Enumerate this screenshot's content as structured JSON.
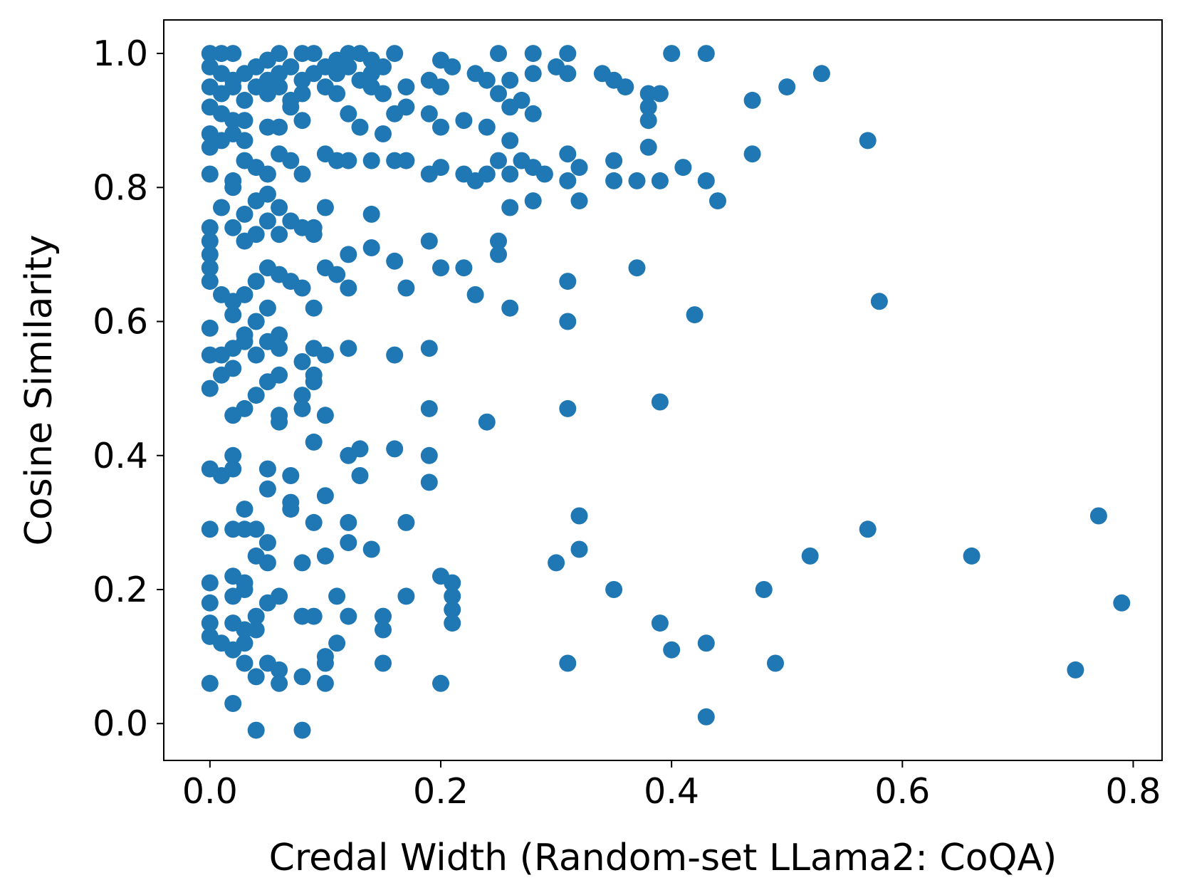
{
  "chart_data": {
    "type": "scatter",
    "title": "",
    "xlabel": "Credal Width (Random-set LLama2: CoQA)",
    "ylabel": "Cosine Similarity",
    "xlim": [
      -0.04,
      0.825
    ],
    "ylim": [
      -0.055,
      1.05
    ],
    "xticks": [
      "0.0",
      "0.2",
      "0.4",
      "0.6",
      "0.8"
    ],
    "yticks": [
      "0.0",
      "0.2",
      "0.4",
      "0.6",
      "0.8",
      "1.0"
    ],
    "grid": false,
    "legend": "none",
    "marker_color": "#1f77b4",
    "series": [
      {
        "points": [
          [
            0.0,
            1.0
          ],
          [
            0.01,
            1.0
          ],
          [
            0.02,
            1.0
          ],
          [
            0.05,
            0.99
          ],
          [
            0.06,
            1.0
          ],
          [
            0.08,
            1.0
          ],
          [
            0.09,
            1.0
          ],
          [
            0.11,
            0.99
          ],
          [
            0.12,
            1.0
          ],
          [
            0.13,
            1.0
          ],
          [
            0.14,
            0.99
          ],
          [
            0.16,
            1.0
          ],
          [
            0.25,
            1.0
          ],
          [
            0.28,
            1.0
          ],
          [
            0.31,
            1.0
          ],
          [
            0.4,
            1.0
          ],
          [
            0.43,
            1.0
          ],
          [
            0.0,
            0.98
          ],
          [
            0.01,
            0.97
          ],
          [
            0.02,
            0.96
          ],
          [
            0.03,
            0.97
          ],
          [
            0.04,
            0.98
          ],
          [
            0.05,
            0.96
          ],
          [
            0.06,
            0.97
          ],
          [
            0.07,
            0.98
          ],
          [
            0.08,
            0.96
          ],
          [
            0.09,
            0.97
          ],
          [
            0.1,
            0.98
          ],
          [
            0.11,
            0.97
          ],
          [
            0.12,
            0.98
          ],
          [
            0.13,
            0.96
          ],
          [
            0.14,
            0.97
          ],
          [
            0.15,
            0.98
          ],
          [
            0.2,
            0.99
          ],
          [
            0.21,
            0.98
          ],
          [
            0.23,
            0.97
          ],
          [
            0.24,
            0.96
          ],
          [
            0.26,
            0.96
          ],
          [
            0.28,
            0.97
          ],
          [
            0.3,
            0.98
          ],
          [
            0.31,
            0.97
          ],
          [
            0.34,
            0.97
          ],
          [
            0.35,
            0.96
          ],
          [
            0.53,
            0.97
          ],
          [
            0.0,
            0.95
          ],
          [
            0.01,
            0.94
          ],
          [
            0.02,
            0.95
          ],
          [
            0.03,
            0.93
          ],
          [
            0.04,
            0.95
          ],
          [
            0.05,
            0.94
          ],
          [
            0.06,
            0.95
          ],
          [
            0.07,
            0.93
          ],
          [
            0.08,
            0.94
          ],
          [
            0.1,
            0.95
          ],
          [
            0.11,
            0.94
          ],
          [
            0.14,
            0.95
          ],
          [
            0.15,
            0.94
          ],
          [
            0.17,
            0.95
          ],
          [
            0.19,
            0.96
          ],
          [
            0.2,
            0.95
          ],
          [
            0.25,
            0.94
          ],
          [
            0.27,
            0.93
          ],
          [
            0.36,
            0.95
          ],
          [
            0.38,
            0.94
          ],
          [
            0.39,
            0.94
          ],
          [
            0.5,
            0.95
          ],
          [
            0.0,
            0.92
          ],
          [
            0.01,
            0.91
          ],
          [
            0.02,
            0.9
          ],
          [
            0.03,
            0.9
          ],
          [
            0.05,
            0.89
          ],
          [
            0.06,
            0.89
          ],
          [
            0.07,
            0.92
          ],
          [
            0.08,
            0.9
          ],
          [
            0.12,
            0.91
          ],
          [
            0.13,
            0.89
          ],
          [
            0.15,
            0.88
          ],
          [
            0.16,
            0.91
          ],
          [
            0.17,
            0.92
          ],
          [
            0.19,
            0.91
          ],
          [
            0.2,
            0.89
          ],
          [
            0.22,
            0.9
          ],
          [
            0.24,
            0.89
          ],
          [
            0.26,
            0.92
          ],
          [
            0.28,
            0.91
          ],
          [
            0.38,
            0.92
          ],
          [
            0.38,
            0.9
          ],
          [
            0.47,
            0.93
          ],
          [
            0.0,
            0.88
          ],
          [
            0.01,
            0.87
          ],
          [
            0.02,
            0.88
          ],
          [
            0.03,
            0.87
          ],
          [
            0.0,
            0.86
          ],
          [
            0.26,
            0.87
          ],
          [
            0.38,
            0.86
          ],
          [
            0.57,
            0.87
          ],
          [
            0.0,
            0.82
          ],
          [
            0.02,
            0.81
          ],
          [
            0.03,
            0.84
          ],
          [
            0.04,
            0.83
          ],
          [
            0.05,
            0.82
          ],
          [
            0.06,
            0.85
          ],
          [
            0.07,
            0.84
          ],
          [
            0.08,
            0.82
          ],
          [
            0.1,
            0.85
          ],
          [
            0.11,
            0.84
          ],
          [
            0.12,
            0.84
          ],
          [
            0.14,
            0.84
          ],
          [
            0.16,
            0.84
          ],
          [
            0.17,
            0.84
          ],
          [
            0.19,
            0.82
          ],
          [
            0.2,
            0.83
          ],
          [
            0.22,
            0.82
          ],
          [
            0.23,
            0.81
          ],
          [
            0.24,
            0.82
          ],
          [
            0.25,
            0.84
          ],
          [
            0.26,
            0.82
          ],
          [
            0.27,
            0.84
          ],
          [
            0.28,
            0.83
          ],
          [
            0.29,
            0.82
          ],
          [
            0.31,
            0.81
          ],
          [
            0.31,
            0.85
          ],
          [
            0.32,
            0.83
          ],
          [
            0.35,
            0.84
          ],
          [
            0.35,
            0.81
          ],
          [
            0.37,
            0.81
          ],
          [
            0.39,
            0.81
          ],
          [
            0.41,
            0.83
          ],
          [
            0.43,
            0.81
          ],
          [
            0.47,
            0.85
          ],
          [
            0.01,
            0.77
          ],
          [
            0.02,
            0.8
          ],
          [
            0.03,
            0.76
          ],
          [
            0.04,
            0.78
          ],
          [
            0.05,
            0.79
          ],
          [
            0.06,
            0.77
          ],
          [
            0.07,
            0.75
          ],
          [
            0.09,
            0.74
          ],
          [
            0.1,
            0.77
          ],
          [
            0.14,
            0.76
          ],
          [
            0.26,
            0.77
          ],
          [
            0.28,
            0.78
          ],
          [
            0.32,
            0.78
          ],
          [
            0.44,
            0.78
          ],
          [
            0.0,
            0.74
          ],
          [
            0.0,
            0.72
          ],
          [
            0.0,
            0.7
          ],
          [
            0.0,
            0.68
          ],
          [
            0.02,
            0.74
          ],
          [
            0.03,
            0.72
          ],
          [
            0.04,
            0.73
          ],
          [
            0.05,
            0.75
          ],
          [
            0.06,
            0.73
          ],
          [
            0.08,
            0.74
          ],
          [
            0.09,
            0.73
          ],
          [
            0.12,
            0.7
          ],
          [
            0.14,
            0.71
          ],
          [
            0.16,
            0.69
          ],
          [
            0.19,
            0.72
          ],
          [
            0.25,
            0.72
          ],
          [
            0.25,
            0.7
          ],
          [
            0.0,
            0.66
          ],
          [
            0.01,
            0.64
          ],
          [
            0.02,
            0.63
          ],
          [
            0.03,
            0.64
          ],
          [
            0.04,
            0.66
          ],
          [
            0.05,
            0.68
          ],
          [
            0.06,
            0.67
          ],
          [
            0.07,
            0.66
          ],
          [
            0.08,
            0.65
          ],
          [
            0.09,
            0.62
          ],
          [
            0.1,
            0.68
          ],
          [
            0.11,
            0.67
          ],
          [
            0.12,
            0.65
          ],
          [
            0.17,
            0.65
          ],
          [
            0.2,
            0.68
          ],
          [
            0.22,
            0.68
          ],
          [
            0.23,
            0.64
          ],
          [
            0.26,
            0.62
          ],
          [
            0.31,
            0.66
          ],
          [
            0.37,
            0.68
          ],
          [
            0.58,
            0.63
          ],
          [
            0.0,
            0.59
          ],
          [
            0.02,
            0.61
          ],
          [
            0.03,
            0.58
          ],
          [
            0.04,
            0.6
          ],
          [
            0.05,
            0.62
          ],
          [
            0.06,
            0.58
          ],
          [
            0.0,
            0.55
          ],
          [
            0.01,
            0.55
          ],
          [
            0.02,
            0.56
          ],
          [
            0.03,
            0.57
          ],
          [
            0.04,
            0.55
          ],
          [
            0.05,
            0.57
          ],
          [
            0.06,
            0.56
          ],
          [
            0.08,
            0.54
          ],
          [
            0.09,
            0.56
          ],
          [
            0.1,
            0.55
          ],
          [
            0.12,
            0.56
          ],
          [
            0.16,
            0.55
          ],
          [
            0.19,
            0.56
          ],
          [
            0.31,
            0.6
          ],
          [
            0.42,
            0.61
          ],
          [
            0.0,
            0.5
          ],
          [
            0.01,
            0.52
          ],
          [
            0.02,
            0.53
          ],
          [
            0.04,
            0.49
          ],
          [
            0.05,
            0.51
          ],
          [
            0.06,
            0.52
          ],
          [
            0.08,
            0.49
          ],
          [
            0.09,
            0.51
          ],
          [
            0.09,
            0.52
          ],
          [
            0.02,
            0.46
          ],
          [
            0.03,
            0.47
          ],
          [
            0.06,
            0.46
          ],
          [
            0.06,
            0.45
          ],
          [
            0.08,
            0.47
          ],
          [
            0.1,
            0.46
          ],
          [
            0.19,
            0.47
          ],
          [
            0.24,
            0.45
          ],
          [
            0.31,
            0.47
          ],
          [
            0.39,
            0.48
          ],
          [
            0.0,
            0.38
          ],
          [
            0.01,
            0.37
          ],
          [
            0.02,
            0.4
          ],
          [
            0.02,
            0.38
          ],
          [
            0.05,
            0.38
          ],
          [
            0.07,
            0.37
          ],
          [
            0.09,
            0.42
          ],
          [
            0.12,
            0.4
          ],
          [
            0.13,
            0.41
          ],
          [
            0.13,
            0.37
          ],
          [
            0.16,
            0.41
          ],
          [
            0.19,
            0.36
          ],
          [
            0.19,
            0.4
          ],
          [
            0.05,
            0.35
          ],
          [
            0.07,
            0.33
          ],
          [
            0.07,
            0.32
          ],
          [
            0.1,
            0.34
          ],
          [
            0.03,
            0.32
          ],
          [
            0.0,
            0.29
          ],
          [
            0.02,
            0.29
          ],
          [
            0.03,
            0.29
          ],
          [
            0.04,
            0.29
          ],
          [
            0.05,
            0.27
          ],
          [
            0.04,
            0.25
          ],
          [
            0.05,
            0.24
          ],
          [
            0.08,
            0.24
          ],
          [
            0.09,
            0.3
          ],
          [
            0.1,
            0.25
          ],
          [
            0.12,
            0.3
          ],
          [
            0.12,
            0.27
          ],
          [
            0.14,
            0.26
          ],
          [
            0.17,
            0.3
          ],
          [
            0.3,
            0.24
          ],
          [
            0.32,
            0.26
          ],
          [
            0.32,
            0.31
          ],
          [
            0.52,
            0.25
          ],
          [
            0.57,
            0.29
          ],
          [
            0.66,
            0.25
          ],
          [
            0.77,
            0.31
          ],
          [
            0.0,
            0.21
          ],
          [
            0.02,
            0.22
          ],
          [
            0.03,
            0.21
          ],
          [
            0.03,
            0.2
          ],
          [
            0.0,
            0.18
          ],
          [
            0.02,
            0.19
          ],
          [
            0.04,
            0.16
          ],
          [
            0.05,
            0.18
          ],
          [
            0.06,
            0.19
          ],
          [
            0.08,
            0.16
          ],
          [
            0.09,
            0.16
          ],
          [
            0.11,
            0.19
          ],
          [
            0.12,
            0.16
          ],
          [
            0.15,
            0.16
          ],
          [
            0.15,
            0.14
          ],
          [
            0.17,
            0.19
          ],
          [
            0.2,
            0.22
          ],
          [
            0.21,
            0.21
          ],
          [
            0.21,
            0.19
          ],
          [
            0.21,
            0.17
          ],
          [
            0.21,
            0.15
          ],
          [
            0.35,
            0.2
          ],
          [
            0.39,
            0.15
          ],
          [
            0.48,
            0.2
          ],
          [
            0.79,
            0.18
          ],
          [
            0.0,
            0.15
          ],
          [
            0.0,
            0.13
          ],
          [
            0.01,
            0.12
          ],
          [
            0.02,
            0.15
          ],
          [
            0.03,
            0.14
          ],
          [
            0.03,
            0.12
          ],
          [
            0.02,
            0.11
          ],
          [
            0.03,
            0.09
          ],
          [
            0.04,
            0.14
          ],
          [
            0.05,
            0.09
          ],
          [
            0.06,
            0.08
          ],
          [
            0.1,
            0.1
          ],
          [
            0.1,
            0.09
          ],
          [
            0.11,
            0.12
          ],
          [
            0.15,
            0.09
          ],
          [
            0.4,
            0.11
          ],
          [
            0.43,
            0.12
          ],
          [
            0.0,
            0.06
          ],
          [
            0.02,
            0.03
          ],
          [
            0.04,
            0.07
          ],
          [
            0.06,
            0.06
          ],
          [
            0.08,
            0.07
          ],
          [
            0.1,
            0.06
          ],
          [
            0.2,
            0.06
          ],
          [
            0.31,
            0.09
          ],
          [
            0.49,
            0.09
          ],
          [
            0.75,
            0.08
          ],
          [
            0.04,
            -0.01
          ],
          [
            0.08,
            -0.01
          ],
          [
            0.43,
            0.01
          ]
        ]
      }
    ]
  }
}
